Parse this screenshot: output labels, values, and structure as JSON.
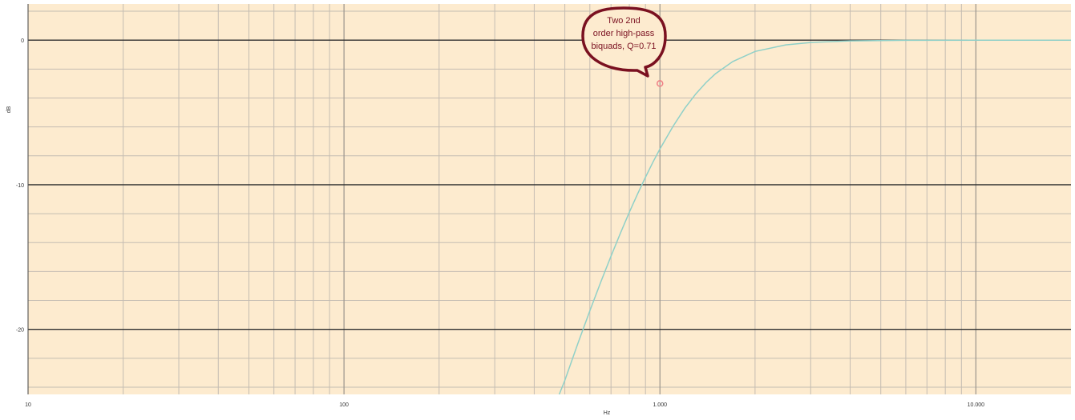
{
  "chart_data": {
    "type": "line",
    "xscale": "log",
    "xlim": [
      10,
      20000
    ],
    "ylim": [
      -24.5,
      2.5
    ],
    "xlabel": "Hz",
    "ylabel": "dB",
    "x_ticks": [
      10,
      100,
      1000,
      10000
    ],
    "x_tick_labels": [
      "10",
      "100",
      "1.000",
      "10.000"
    ],
    "y_ticks": [
      0,
      -10,
      -20
    ],
    "y_tick_labels": [
      "0",
      "-10",
      "-20"
    ],
    "grid": true,
    "colors": {
      "plot_background": "#fdebcf",
      "major_grid": "#2f2f2f",
      "minor_grid": "#c4bcb2",
      "curve": "#8fd0c8",
      "callout_fill": "#fdebcf",
      "callout_stroke": "#7a1020",
      "callout_text": "#7a1020",
      "marker": "#f07f86"
    },
    "series": [
      {
        "x": [
          480,
          500,
          550,
          600,
          650,
          700,
          750,
          800,
          850,
          900,
          950,
          1000,
          1100,
          1200,
          1300,
          1400,
          1500,
          1700,
          2000,
          2500,
          3000,
          4000,
          6000,
          10000,
          20000
        ],
        "y": [
          -24.5,
          -23.53,
          -20.97,
          -18.72,
          -16.72,
          -14.94,
          -13.34,
          -11.91,
          -10.63,
          -9.48,
          -8.44,
          -7.53,
          -5.96,
          -4.7,
          -3.71,
          -2.93,
          -2.32,
          -1.48,
          -0.78,
          -0.33,
          -0.16,
          -0.05,
          -0.01,
          0.0,
          0.0
        ]
      }
    ],
    "annotation": {
      "lines": [
        "Two 2nd",
        "order high-pass",
        "biquads, Q=0.71"
      ],
      "point": {
        "x": 1000,
        "y": -3
      }
    }
  }
}
